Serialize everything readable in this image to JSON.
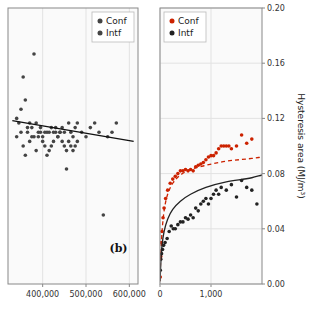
{
  "chart_data": [
    {
      "type": "scatter",
      "annotations": [
        "(b)"
      ],
      "xlim": [
        320000,
        620000
      ],
      "ylim": [
        0.04,
        0.1
      ],
      "xticks": [
        {
          "value": 400000,
          "label": "400,000"
        },
        {
          "value": 500000,
          "label": "500,000"
        },
        {
          "value": 600000,
          "label": "600,000"
        }
      ],
      "tick_labels": "x",
      "grid": true,
      "legend": "upper right",
      "series": [
        {
          "name": "Conf",
          "color": "#444444",
          "x": [
            340000,
            345000,
            350000,
            355000,
            360000,
            365000,
            370000,
            375000,
            380000,
            385000,
            390000,
            395000,
            400000,
            405000,
            410000,
            415000,
            420000,
            425000,
            430000,
            435000,
            440000,
            445000,
            450000,
            455000,
            460000,
            465000,
            470000,
            475000,
            480000
          ],
          "values": [
            0.072,
            0.075,
            0.073,
            0.07,
            0.068,
            0.073,
            0.071,
            0.074,
            0.072,
            0.069,
            0.072,
            0.073,
            0.071,
            0.07,
            0.068,
            0.069,
            0.07,
            0.071,
            0.073,
            0.072,
            0.073,
            0.071,
            0.07,
            0.069,
            0.071,
            0.07,
            0.069,
            0.07,
            0.071
          ]
        },
        {
          "name": "Intf",
          "color": "#444444",
          "x": [
            340000,
            350000,
            355000,
            360000,
            365000,
            370000,
            375000,
            380000,
            385000,
            390000,
            395000,
            400000,
            405000,
            410000,
            415000,
            420000,
            425000,
            430000,
            435000,
            440000,
            445000,
            450000,
            455000,
            460000,
            465000,
            470000,
            475000,
            480000,
            490000,
            500000,
            510000,
            520000,
            530000,
            540000,
            550000,
            560000,
            570000
          ],
          "values": [
            0.076,
            0.078,
            0.085,
            0.08,
            0.074,
            0.075,
            0.072,
            0.09,
            0.075,
            0.073,
            0.074,
            0.072,
            0.073,
            0.073,
            0.073,
            0.074,
            0.073,
            0.074,
            0.072,
            0.073,
            0.074,
            0.073,
            0.065,
            0.075,
            0.073,
            0.072,
            0.074,
            0.075,
            0.073,
            0.072,
            0.074,
            0.075,
            0.073,
            0.055,
            0.072,
            0.073,
            0.075
          ]
        },
        {
          "type": "line",
          "color": "#111111",
          "line_style": "solid",
          "x": [
            330000,
            610000
          ],
          "values": [
            0.0755,
            0.071
          ]
        }
      ]
    },
    {
      "type": "scatter",
      "y_label": "Hysteresis area (MJ/m³)",
      "xlim": [
        0,
        2000
      ],
      "ylim": [
        0.0,
        0.2
      ],
      "xticks": [
        0,
        {
          "value": 1000,
          "label": "1,000"
        }
      ],
      "yticks": [
        {
          "value": 0.0,
          "label": "0.00"
        },
        {
          "value": 0.04,
          "label": "0.04"
        },
        {
          "value": 0.08,
          "label": "0.08"
        },
        {
          "value": 0.12,
          "label": "0.12"
        },
        {
          "value": 0.16,
          "label": "0.16"
        },
        {
          "value": 0.2,
          "label": "0.20"
        }
      ],
      "grid": true,
      "legend": "upper left",
      "series": [
        {
          "name": "Conf",
          "color": "#cc2200",
          "x": [
            5,
            15,
            25,
            40,
            60,
            80,
            110,
            150,
            200,
            250,
            300,
            350,
            400,
            450,
            500,
            550,
            600,
            650,
            700,
            750,
            800,
            850,
            900,
            950,
            1000,
            1050,
            1100,
            1150,
            1200,
            1250,
            1300,
            1350,
            1400,
            1500,
            1600,
            1700,
            1800
          ],
          "values": [
            0.005,
            0.02,
            0.03,
            0.038,
            0.048,
            0.055,
            0.062,
            0.068,
            0.073,
            0.076,
            0.078,
            0.08,
            0.082,
            0.082,
            0.083,
            0.082,
            0.083,
            0.082,
            0.085,
            0.086,
            0.087,
            0.088,
            0.09,
            0.092,
            0.093,
            0.093,
            0.095,
            0.098,
            0.1,
            0.1,
            0.1,
            0.1,
            0.098,
            0.1,
            0.108,
            0.102,
            0.105
          ]
        },
        {
          "name": "Intf",
          "color": "#222222",
          "x": [
            5,
            15,
            30,
            50,
            70,
            100,
            140,
            180,
            220,
            260,
            300,
            350,
            400,
            450,
            500,
            550,
            600,
            650,
            700,
            750,
            800,
            850,
            900,
            950,
            1000,
            1050,
            1100,
            1150,
            1200,
            1300,
            1400,
            1500,
            1600,
            1700,
            1800,
            1900
          ],
          "values": [
            0.01,
            0.018,
            0.022,
            0.025,
            0.028,
            0.03,
            0.033,
            0.038,
            0.042,
            0.04,
            0.04,
            0.043,
            0.045,
            0.045,
            0.048,
            0.047,
            0.05,
            0.048,
            0.055,
            0.053,
            0.058,
            0.06,
            0.062,
            0.058,
            0.062,
            0.065,
            0.068,
            0.065,
            0.07,
            0.068,
            0.072,
            0.063,
            0.075,
            0.07,
            0.068,
            0.058
          ]
        },
        {
          "type": "line",
          "color": "#cc2200",
          "line_style": "dashed",
          "x": [
            1,
            10,
            20,
            40,
            80,
            150,
            250,
            400,
            600,
            900,
            1300,
            1800,
            2000
          ],
          "values": [
            0.002,
            0.015,
            0.025,
            0.038,
            0.053,
            0.065,
            0.073,
            0.079,
            0.083,
            0.086,
            0.089,
            0.091,
            0.092
          ]
        },
        {
          "type": "line",
          "color": "#222222",
          "line_style": "solid",
          "x": [
            1,
            10,
            20,
            40,
            80,
            150,
            250,
            400,
            600,
            900,
            1300,
            1800,
            2000
          ],
          "values": [
            0.002,
            0.01,
            0.018,
            0.028,
            0.038,
            0.047,
            0.054,
            0.06,
            0.065,
            0.07,
            0.074,
            0.077,
            0.079
          ]
        }
      ]
    }
  ]
}
